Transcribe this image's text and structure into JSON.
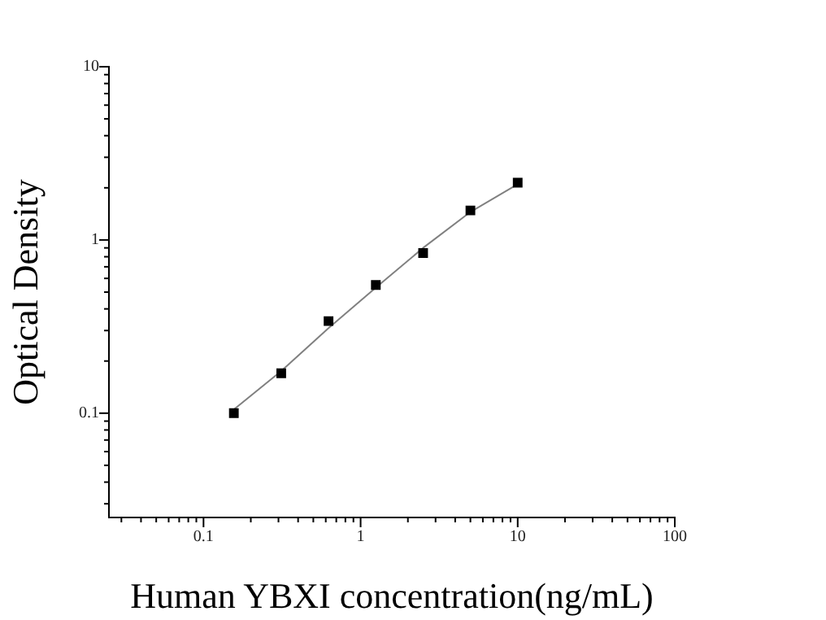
{
  "chart_data": {
    "type": "scatter",
    "xlabel": "Human YBXI concentration(ng/mL)",
    "ylabel": "Optical Density",
    "log": "xy",
    "grid": false,
    "legend": false,
    "marker": "square",
    "xlim": [
      0.025,
      100
    ],
    "ylim": [
      0.025,
      10
    ],
    "xticks": [
      {
        "value": 0.03,
        "label": null
      },
      {
        "value": 0.04,
        "label": null
      },
      {
        "value": 0.05,
        "label": null
      },
      {
        "value": 0.06,
        "label": null
      },
      {
        "value": 0.07,
        "label": null
      },
      {
        "value": 0.08,
        "label": null
      },
      {
        "value": 0.09,
        "label": null
      },
      0.1,
      {
        "value": 0.2,
        "label": null
      },
      {
        "value": 0.3,
        "label": null
      },
      {
        "value": 0.4,
        "label": null
      },
      {
        "value": 0.5,
        "label": null
      },
      {
        "value": 0.6,
        "label": null
      },
      {
        "value": 0.7,
        "label": null
      },
      {
        "value": 0.8,
        "label": null
      },
      {
        "value": 0.9,
        "label": null
      },
      1,
      {
        "value": 2,
        "label": null
      },
      {
        "value": 3,
        "label": null
      },
      {
        "value": 4,
        "label": null
      },
      {
        "value": 5,
        "label": null
      },
      {
        "value": 6,
        "label": null
      },
      {
        "value": 7,
        "label": null
      },
      {
        "value": 8,
        "label": null
      },
      {
        "value": 9,
        "label": null
      },
      10,
      {
        "value": 20,
        "label": null
      },
      {
        "value": 30,
        "label": null
      },
      {
        "value": 40,
        "label": null
      },
      {
        "value": 50,
        "label": null
      },
      {
        "value": 60,
        "label": null
      },
      {
        "value": 70,
        "label": null
      },
      {
        "value": 80,
        "label": null
      },
      {
        "value": 90,
        "label": null
      },
      100
    ],
    "yticks": [
      {
        "value": 0.03,
        "label": null
      },
      {
        "value": 0.04,
        "label": null
      },
      {
        "value": 0.05,
        "label": null
      },
      {
        "value": 0.06,
        "label": null
      },
      {
        "value": 0.07,
        "label": null
      },
      {
        "value": 0.08,
        "label": null
      },
      {
        "value": 0.09,
        "label": null
      },
      0.1,
      {
        "value": 0.2,
        "label": null
      },
      {
        "value": 0.3,
        "label": null
      },
      {
        "value": 0.4,
        "label": null
      },
      {
        "value": 0.5,
        "label": null
      },
      {
        "value": 0.6,
        "label": null
      },
      {
        "value": 0.7,
        "label": null
      },
      {
        "value": 0.8,
        "label": null
      },
      {
        "value": 0.9,
        "label": null
      },
      1,
      {
        "value": 2,
        "label": null
      },
      {
        "value": 3,
        "label": null
      },
      {
        "value": 4,
        "label": null
      },
      {
        "value": 5,
        "label": null
      },
      {
        "value": 6,
        "label": null
      },
      {
        "value": 7,
        "label": null
      },
      {
        "value": 8,
        "label": null
      },
      {
        "value": 9,
        "label": null
      },
      10
    ],
    "series": [
      {
        "type": "line",
        "color": "#808080",
        "marker": "none",
        "x": [
          0.156,
          0.3125,
          0.625,
          1.25,
          2.5,
          5,
          10
        ],
        "values": [
          0.105,
          0.175,
          0.31,
          0.53,
          0.9,
          1.45,
          2.1
        ]
      },
      {
        "color": "#000000",
        "x": [
          0.156,
          0.3125,
          0.625,
          1.25,
          2.5,
          5,
          10
        ],
        "values": [
          0.1,
          0.17,
          0.34,
          0.55,
          0.84,
          1.48,
          2.14
        ]
      }
    ]
  }
}
